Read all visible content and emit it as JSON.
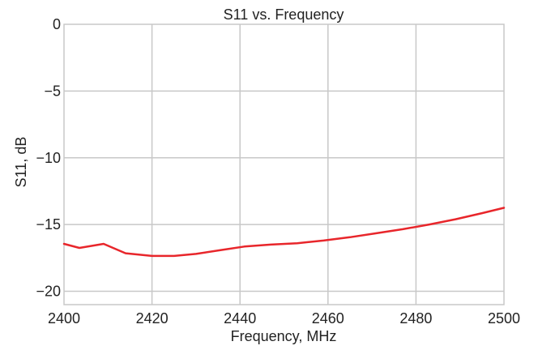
{
  "chart_data": {
    "type": "line",
    "title": "S11 vs. Frequency",
    "xlabel": "Frequency, MHz",
    "ylabel": "S11, dB",
    "xlim": [
      2400,
      2500
    ],
    "ylim": [
      -21,
      0
    ],
    "xticks": [
      2400,
      2420,
      2440,
      2460,
      2480,
      2500
    ],
    "yticks": [
      0,
      -5,
      -10,
      -15,
      -20
    ],
    "ytick_labels": [
      "0",
      "−5",
      "−10",
      "−15",
      "−20"
    ],
    "grid": true,
    "colors": {
      "line": "#e8262b",
      "grid": "#c8c8c8",
      "frame": "#c8c8c8"
    },
    "series": [
      {
        "x": [
          2400,
          2403.5,
          2409,
          2414,
          2420,
          2425,
          2430,
          2436,
          2441,
          2447,
          2453,
          2459,
          2465,
          2471,
          2477,
          2483,
          2489,
          2495,
          2500
        ],
        "y": [
          -16.45,
          -16.75,
          -16.45,
          -17.15,
          -17.35,
          -17.35,
          -17.2,
          -16.9,
          -16.65,
          -16.5,
          -16.4,
          -16.2,
          -15.95,
          -15.65,
          -15.35,
          -15.0,
          -14.6,
          -14.15,
          -13.75
        ]
      }
    ]
  }
}
